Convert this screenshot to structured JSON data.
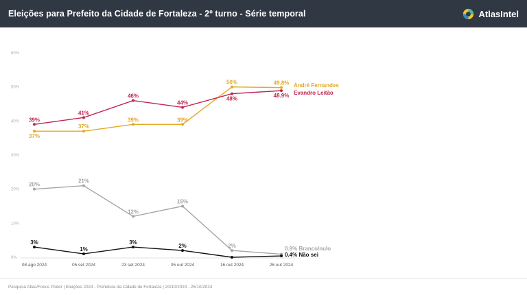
{
  "header": {
    "title": "Eleições para Prefeito da Cidade de Fortaleza - 2º turno - Série temporal",
    "brand_name": "AtlasIntel",
    "brand_icon": "atlasintel-logo-icon"
  },
  "footer": {
    "text": "Pesquisa Atlas/Focus Poder  |  Eleições 2024 - Prefeitura da Cidade de Fortaleza  |  20/10/2024 - 25/10/2024"
  },
  "chart_data": {
    "type": "line",
    "x": [
      "08 ago 2024",
      "05 set 2024",
      "23 set 2024",
      "05 out 2024",
      "16 out 2024",
      "26 out 2024"
    ],
    "y_ticks": [
      "0%",
      "10%",
      "20%",
      "30%",
      "40%",
      "50%",
      "60%"
    ],
    "ylim": [
      0,
      60
    ],
    "grid": false,
    "legend": "inline-right",
    "series": [
      {
        "name": "André Fernandes",
        "color": "#e3a825",
        "values": [
          37,
          37,
          39,
          39,
          50,
          49.8
        ],
        "labels": [
          "37%",
          "",
          "39%",
          "39%",
          "50%",
          "49.8%"
        ],
        "label_pos": [
          "below",
          "above",
          "above",
          "above",
          "above",
          "above"
        ]
      },
      {
        "name": "Evandro Leitão",
        "color": "#c0244f",
        "values": [
          39,
          41,
          46,
          44,
          48,
          48.9
        ],
        "labels": [
          "39%",
          "41%",
          "46%",
          "44%",
          "48%",
          "48.9%"
        ],
        "label_pos": [
          "above",
          "above",
          "above",
          "above",
          "below",
          "below"
        ]
      },
      {
        "name": "Branco/nulo",
        "color": "#a5a5a5",
        "values": [
          20,
          21,
          12,
          15,
          2,
          0.9
        ],
        "labels": [
          "20%",
          "21%",
          "12%",
          "15%",
          "2%",
          ""
        ],
        "label_pos": [
          "above",
          "above",
          "above",
          "above",
          "above",
          "above"
        ],
        "end_label": "0.9% Branco/nulo"
      },
      {
        "name": "Não sei",
        "color": "#111111",
        "values": [
          3,
          1,
          3,
          2,
          0,
          0.4
        ],
        "labels": [
          "3%",
          "1%",
          "3%",
          "2%",
          "",
          ""
        ],
        "label_pos": [
          "above",
          "above",
          "above",
          "above",
          "above",
          "above"
        ],
        "end_label": "0.4% Não sei"
      }
    ],
    "extra_labels": [
      {
        "series": 0,
        "index": 1,
        "text": "37%",
        "pos": "above"
      }
    ]
  }
}
